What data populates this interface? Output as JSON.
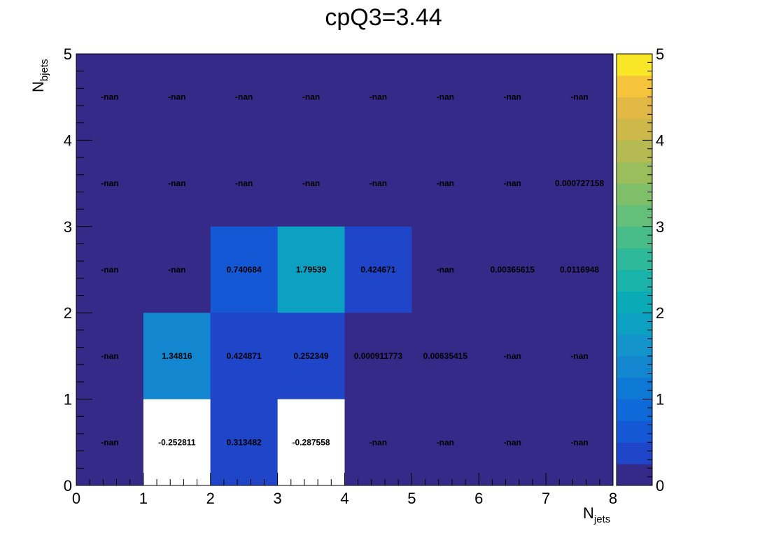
{
  "chart_data": {
    "type": "heatmap",
    "title": "cpQ3=3.44",
    "xlabel": "N",
    "xlabel_sub": "jets",
    "ylabel": "N",
    "ylabel_sub": "bjets",
    "xlim": [
      0,
      8
    ],
    "ylim": [
      0,
      5
    ],
    "x_ticks": [
      "0",
      "1",
      "2",
      "3",
      "4",
      "5",
      "6",
      "7",
      "8"
    ],
    "y_ticks": [
      "0",
      "1",
      "2",
      "3",
      "4",
      "5"
    ],
    "zlim": [
      0,
      5
    ],
    "z_ticks": [
      "0",
      "1",
      "2",
      "3",
      "4",
      "5"
    ],
    "colormap": "parula",
    "background_color": "#352a87",
    "cells": [
      {
        "x": 0,
        "y": 0,
        "label": "-nan"
      },
      {
        "x": 1,
        "y": 0,
        "value": -0.252811,
        "label": "-0.252811"
      },
      {
        "x": 2,
        "y": 0,
        "value": 0.313482,
        "label": "0.313482"
      },
      {
        "x": 3,
        "y": 0,
        "value": -0.287558,
        "label": "-0.287558"
      },
      {
        "x": 4,
        "y": 0,
        "label": "-nan"
      },
      {
        "x": 5,
        "y": 0,
        "label": "-nan"
      },
      {
        "x": 6,
        "y": 0,
        "label": "-nan"
      },
      {
        "x": 7,
        "y": 0,
        "label": "-nan"
      },
      {
        "x": 0,
        "y": 1,
        "label": "-nan"
      },
      {
        "x": 1,
        "y": 1,
        "value": 1.34816,
        "label": "1.34816"
      },
      {
        "x": 2,
        "y": 1,
        "value": 0.424871,
        "label": "0.424871"
      },
      {
        "x": 3,
        "y": 1,
        "value": 0.252349,
        "label": "0.252349"
      },
      {
        "x": 4,
        "y": 1,
        "value": 0.000911773,
        "label": "0.000911773"
      },
      {
        "x": 5,
        "y": 1,
        "value": 0.00635415,
        "label": "0.00635415"
      },
      {
        "x": 6,
        "y": 1,
        "label": "-nan"
      },
      {
        "x": 7,
        "y": 1,
        "label": "-nan"
      },
      {
        "x": 0,
        "y": 2,
        "label": "-nan"
      },
      {
        "x": 1,
        "y": 2,
        "label": "-nan"
      },
      {
        "x": 2,
        "y": 2,
        "value": 0.740684,
        "label": "0.740684"
      },
      {
        "x": 3,
        "y": 2,
        "value": 1.79539,
        "label": "1.79539"
      },
      {
        "x": 4,
        "y": 2,
        "value": 0.424671,
        "label": "0.424671"
      },
      {
        "x": 5,
        "y": 2,
        "label": "-nan"
      },
      {
        "x": 6,
        "y": 2,
        "value": 0.00365615,
        "label": "0.00365615"
      },
      {
        "x": 7,
        "y": 2,
        "value": 0.0116948,
        "label": "0.0116948"
      },
      {
        "x": 0,
        "y": 3,
        "label": "-nan"
      },
      {
        "x": 1,
        "y": 3,
        "label": "-nan"
      },
      {
        "x": 2,
        "y": 3,
        "label": "-nan"
      },
      {
        "x": 3,
        "y": 3,
        "label": "-nan"
      },
      {
        "x": 4,
        "y": 3,
        "label": "-nan"
      },
      {
        "x": 5,
        "y": 3,
        "label": "-nan"
      },
      {
        "x": 6,
        "y": 3,
        "label": "-nan"
      },
      {
        "x": 7,
        "y": 3,
        "value": 0.000727158,
        "label": "0.000727158"
      },
      {
        "x": 0,
        "y": 4,
        "label": "-nan"
      },
      {
        "x": 1,
        "y": 4,
        "label": "-nan"
      },
      {
        "x": 2,
        "y": 4,
        "label": "-nan"
      },
      {
        "x": 3,
        "y": 4,
        "label": "-nan"
      },
      {
        "x": 4,
        "y": 4,
        "label": "-nan"
      },
      {
        "x": 5,
        "y": 4,
        "label": "-nan"
      },
      {
        "x": 6,
        "y": 4,
        "label": "-nan"
      },
      {
        "x": 7,
        "y": 4,
        "label": "-nan"
      }
    ]
  }
}
